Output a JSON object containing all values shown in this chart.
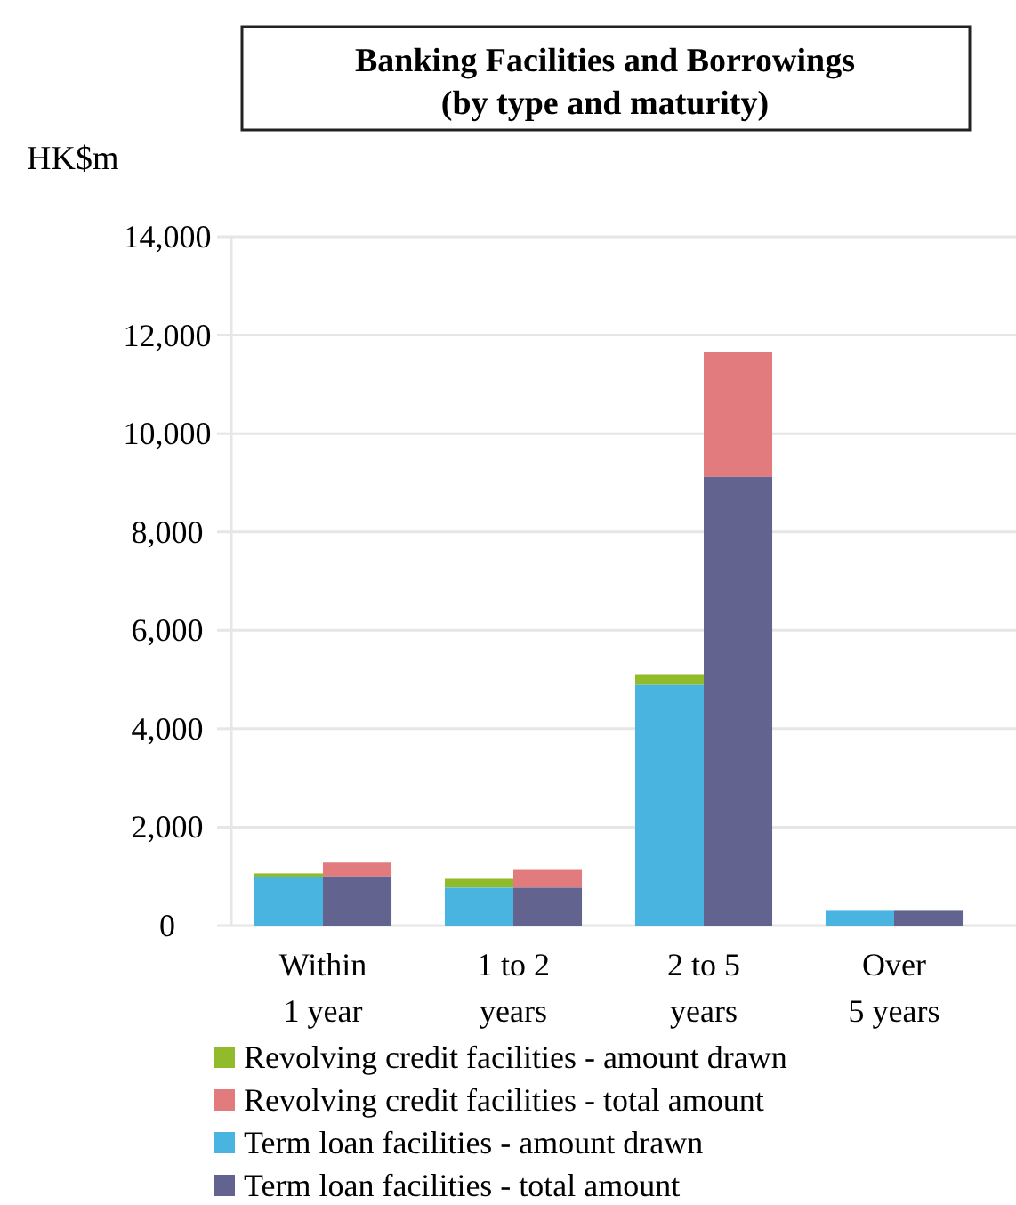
{
  "chart_data": {
    "type": "bar",
    "title": "Banking Facilities and Borrowings\n(by type and maturity)",
    "ylabel": "HK$m",
    "categories": [
      "Within\n1 year",
      "1 to 2\nyears",
      "2 to 5\nyears",
      "Over\n5 years"
    ],
    "series": [
      {
        "name": "Revolving credit facilities - amount drawn",
        "color": "#92bb2b",
        "base": [
          990,
          770,
          4890,
          null
        ],
        "values": [
          70,
          180,
          220,
          null
        ]
      },
      {
        "name": "Revolving credit facilities - total amount",
        "color": "#e27b7d",
        "base": [
          1000,
          770,
          9120,
          null
        ],
        "values": [
          280,
          360,
          2530,
          null
        ]
      },
      {
        "name": "Term loan facilities - amount drawn",
        "color": "#49b4e0",
        "values": [
          990,
          770,
          4890,
          300
        ]
      },
      {
        "name": "Term loan facilities - total amount",
        "color": "#62638f",
        "values": [
          1000,
          770,
          9120,
          300
        ]
      }
    ],
    "ylim": [
      0,
      14000
    ],
    "yticks": [
      0,
      {
        "value": 2000,
        "label": "2,000"
      },
      {
        "value": 4000,
        "label": "4,000"
      },
      {
        "value": 6000,
        "label": "6,000"
      },
      {
        "value": 8000,
        "label": "8,000"
      },
      {
        "value": 10000,
        "label": "10,000"
      },
      {
        "value": 12000,
        "label": "12,000"
      },
      {
        "value": 14000,
        "label": "14,000"
      }
    ],
    "grid": "y",
    "legend": "bottom"
  }
}
